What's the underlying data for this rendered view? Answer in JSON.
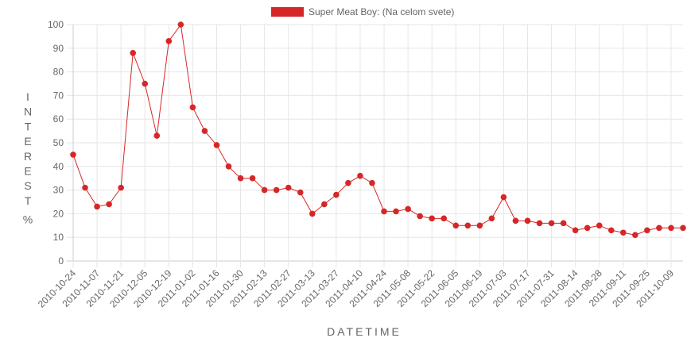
{
  "chart_data": {
    "type": "line",
    "legend": {
      "position": "top",
      "label": "Super Meat Boy: (Na celom svete)"
    },
    "xlabel": "DATETIME",
    "ylabel": "INTEREST %",
    "ylim": [
      0,
      100
    ],
    "yticks": [
      0,
      10,
      20,
      30,
      40,
      50,
      60,
      70,
      80,
      90,
      100
    ],
    "grid": true,
    "color": "#d62728",
    "x_tick_labels": [
      "2010-10-24",
      "2010-11-07",
      "2010-11-21",
      "2010-12-05",
      "2010-12-19",
      "2011-01-02",
      "2011-01-16",
      "2011-01-30",
      "2011-02-13",
      "2011-02-27",
      "2011-03-13",
      "2011-03-27",
      "2011-04-10",
      "2011-04-24",
      "2011-05-08",
      "2011-05-22",
      "2011-06-05",
      "2011-06-19",
      "2011-07-03",
      "2011-07-17",
      "2011-07-31",
      "2011-08-14",
      "2011-08-28",
      "2011-09-11",
      "2011-09-25",
      "2011-10-09"
    ],
    "series": [
      {
        "name": "Super Meat Boy: (Na celom svete)",
        "x": [
          "2010-10-24",
          "2010-10-31",
          "2010-11-07",
          "2010-11-14",
          "2010-11-21",
          "2010-11-28",
          "2010-12-05",
          "2010-12-12",
          "2010-12-19",
          "2010-12-26",
          "2011-01-02",
          "2011-01-09",
          "2011-01-16",
          "2011-01-23",
          "2011-01-30",
          "2011-02-06",
          "2011-02-13",
          "2011-02-20",
          "2011-02-27",
          "2011-03-06",
          "2011-03-13",
          "2011-03-20",
          "2011-03-27",
          "2011-04-03",
          "2011-04-10",
          "2011-04-17",
          "2011-04-24",
          "2011-05-01",
          "2011-05-08",
          "2011-05-15",
          "2011-05-22",
          "2011-05-29",
          "2011-06-05",
          "2011-06-12",
          "2011-06-19",
          "2011-06-26",
          "2011-07-03",
          "2011-07-10",
          "2011-07-17",
          "2011-07-24",
          "2011-07-31",
          "2011-08-07",
          "2011-08-14",
          "2011-08-21",
          "2011-08-28",
          "2011-09-04",
          "2011-09-11",
          "2011-09-18",
          "2011-09-25",
          "2011-10-02",
          "2011-10-09",
          "2011-10-16"
        ],
        "values": [
          45,
          31,
          23,
          24,
          31,
          88,
          75,
          53,
          93,
          100,
          65,
          55,
          49,
          40,
          35,
          35,
          30,
          30,
          31,
          29,
          20,
          24,
          28,
          33,
          36,
          33,
          21,
          21,
          22,
          19,
          18,
          18,
          15,
          15,
          15,
          18,
          27,
          17,
          17,
          16,
          16,
          16,
          13,
          14,
          15,
          13,
          12,
          11,
          13,
          14,
          14,
          14
        ]
      }
    ]
  }
}
